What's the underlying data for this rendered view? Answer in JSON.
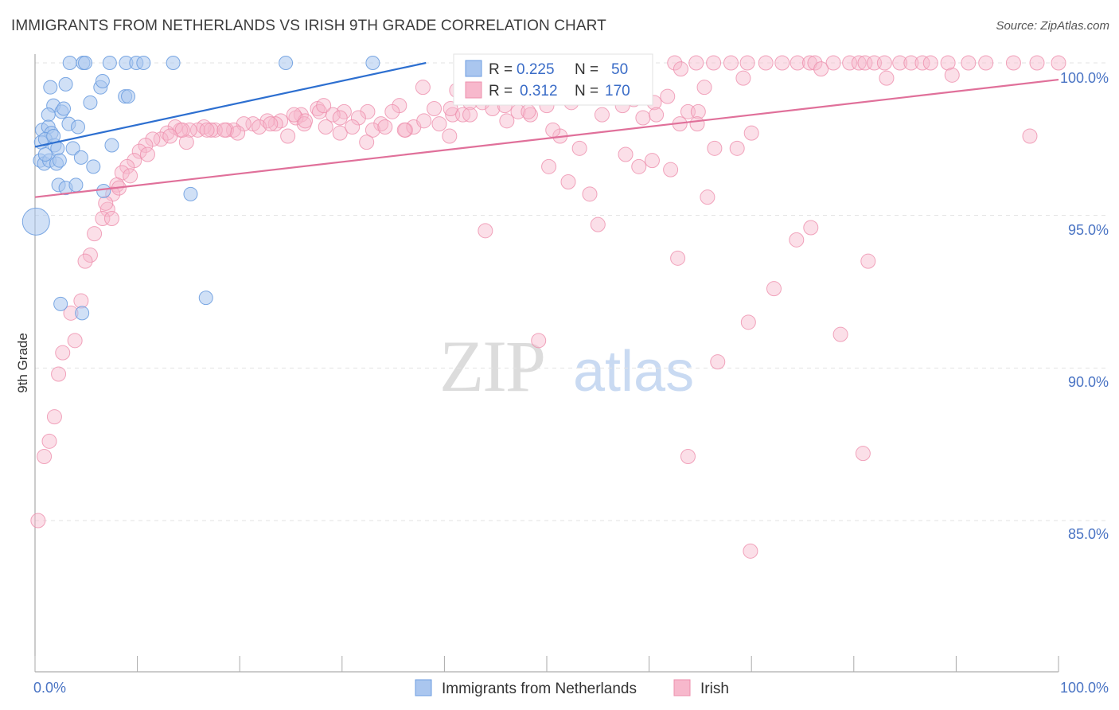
{
  "title": "IMMIGRANTS FROM NETHERLANDS VS IRISH 9TH GRADE CORRELATION CHART",
  "source": "Source: ZipAtlas.com",
  "watermark": {
    "zip": "ZIP",
    "atlas": "atlas"
  },
  "legend_box": [
    {
      "r_label": "R =",
      "r_value": "0.225",
      "n_label": "N =",
      "n_value": "50"
    },
    {
      "r_label": "R =",
      "r_value": "0.312",
      "n_label": "N =",
      "n_value": "170"
    }
  ],
  "chart_data": {
    "type": "scatter",
    "title": "IMMIGRANTS FROM NETHERLANDS VS IRISH 9TH GRADE CORRELATION CHART",
    "xlabel": "",
    "ylabel": "9th Grade",
    "xlim": [
      0,
      100
    ],
    "ylim": [
      80.5,
      100.9
    ],
    "x_tick_labels": [
      "0.0%",
      "100.0%"
    ],
    "y_ticks": [
      85,
      90,
      95,
      100
    ],
    "y_tick_labels": [
      "85.0%",
      "90.0%",
      "95.0%",
      "100.0%"
    ],
    "grid": true,
    "legend_position": "bottom",
    "colors": {
      "blue_fill": "#aac6ef",
      "blue_stroke": "#6e9ee0",
      "blue_line": "#2d6fd0",
      "pink_fill": "#f7b8cc",
      "pink_stroke": "#ee8fad",
      "pink_line": "#e0709a"
    },
    "series": [
      {
        "name": "Immigrants from Netherlands",
        "R": 0.225,
        "N": 50,
        "trend": {
          "x0": 0,
          "y0": 97.25,
          "x1": 38.2,
          "y1": 100
        },
        "points": [
          [
            3.4,
            100
          ],
          [
            4.7,
            100
          ],
          [
            4.9,
            100
          ],
          [
            7.3,
            100
          ],
          [
            8.9,
            100
          ],
          [
            9.9,
            100
          ],
          [
            10.6,
            100
          ],
          [
            13.5,
            100
          ],
          [
            24.5,
            100
          ],
          [
            33.0,
            100
          ],
          [
            1.5,
            99.2
          ],
          [
            3.0,
            99.3
          ],
          [
            6.4,
            99.2
          ],
          [
            6.6,
            99.4
          ],
          [
            8.8,
            98.9
          ],
          [
            9.1,
            98.9
          ],
          [
            1.8,
            98.6
          ],
          [
            2.6,
            98.4
          ],
          [
            2.8,
            98.5
          ],
          [
            5.4,
            98.7
          ],
          [
            1.3,
            98.3
          ],
          [
            0.7,
            97.8
          ],
          [
            1.3,
            97.9
          ],
          [
            1.6,
            97.7
          ],
          [
            3.3,
            98.0
          ],
          [
            4.2,
            97.9
          ],
          [
            0.6,
            97.4
          ],
          [
            1.0,
            97.5
          ],
          [
            1.9,
            97.3
          ],
          [
            2.2,
            97.2
          ],
          [
            3.7,
            97.2
          ],
          [
            7.5,
            97.3
          ],
          [
            0.5,
            96.8
          ],
          [
            0.9,
            96.7
          ],
          [
            1.4,
            96.8
          ],
          [
            2.1,
            96.7
          ],
          [
            2.4,
            96.8
          ],
          [
            4.5,
            96.9
          ],
          [
            5.7,
            96.6
          ],
          [
            1.0,
            97.0
          ],
          [
            2.3,
            96.0
          ],
          [
            3.0,
            95.9
          ],
          [
            4.0,
            96.0
          ],
          [
            6.7,
            95.8
          ],
          [
            15.2,
            95.7
          ],
          [
            0.1,
            94.8
          ],
          [
            2.5,
            92.1
          ],
          [
            4.6,
            91.8
          ],
          [
            16.7,
            92.3
          ],
          [
            1.8,
            97.6
          ]
        ]
      },
      {
        "name": "Irish",
        "R": 0.312,
        "N": 170,
        "trend": {
          "x0": 0,
          "y0": 95.6,
          "x1": 100,
          "y1": 99.45
        },
        "points": [
          [
            51.2,
            100
          ],
          [
            51.8,
            100
          ],
          [
            52.8,
            100
          ],
          [
            54.9,
            100
          ],
          [
            57.3,
            100
          ],
          [
            62.5,
            100
          ],
          [
            64.6,
            100
          ],
          [
            66.3,
            100
          ],
          [
            68.0,
            100
          ],
          [
            69.6,
            100
          ],
          [
            71.4,
            100
          ],
          [
            73.0,
            100
          ],
          [
            74.5,
            100
          ],
          [
            75.7,
            100
          ],
          [
            76.2,
            100
          ],
          [
            78.0,
            100
          ],
          [
            79.6,
            100
          ],
          [
            80.5,
            100
          ],
          [
            81.1,
            100
          ],
          [
            82.0,
            100
          ],
          [
            83.0,
            100
          ],
          [
            84.5,
            100
          ],
          [
            85.6,
            100
          ],
          [
            86.7,
            100
          ],
          [
            87.5,
            100
          ],
          [
            89.2,
            100
          ],
          [
            91.2,
            100
          ],
          [
            92.9,
            100
          ],
          [
            95.6,
            100
          ],
          [
            97.9,
            100
          ],
          [
            100.0,
            100
          ],
          [
            63.1,
            99.8
          ],
          [
            69.2,
            99.5
          ],
          [
            76.8,
            99.8
          ],
          [
            89.6,
            99.6
          ],
          [
            65.4,
            99.2
          ],
          [
            83.2,
            99.5
          ],
          [
            97.2,
            97.6
          ],
          [
            37.9,
            99.2
          ],
          [
            41.2,
            99.1
          ],
          [
            44.3,
            99.1
          ],
          [
            46.8,
            98.9
          ],
          [
            49.2,
            98.9
          ],
          [
            52.4,
            98.7
          ],
          [
            54.9,
            98.9
          ],
          [
            56.0,
            99.1
          ],
          [
            60.5,
            98.7
          ],
          [
            61.8,
            98.9
          ],
          [
            63.8,
            98.4
          ],
          [
            64.8,
            98.4
          ],
          [
            50.0,
            98.6
          ],
          [
            42.5,
            98.7
          ],
          [
            40.8,
            98.3
          ],
          [
            39.0,
            98.5
          ],
          [
            35.6,
            98.6
          ],
          [
            34.9,
            98.4
          ],
          [
            33.8,
            98.0
          ],
          [
            32.5,
            98.4
          ],
          [
            31.6,
            98.2
          ],
          [
            30.2,
            98.4
          ],
          [
            29.1,
            98.3
          ],
          [
            27.6,
            98.5
          ],
          [
            27.8,
            98.4
          ],
          [
            26.0,
            98.3
          ],
          [
            25.5,
            98.2
          ],
          [
            24.0,
            98.1
          ],
          [
            23.5,
            98.0
          ],
          [
            22.7,
            98.1
          ],
          [
            21.3,
            98.0
          ],
          [
            20.4,
            98.0
          ],
          [
            19.4,
            97.8
          ],
          [
            18.7,
            97.8
          ],
          [
            17.6,
            97.8
          ],
          [
            16.5,
            97.9
          ],
          [
            15.9,
            97.8
          ],
          [
            15.1,
            97.8
          ],
          [
            14.2,
            97.8
          ],
          [
            13.7,
            97.9
          ],
          [
            12.9,
            97.7
          ],
          [
            12.3,
            97.5
          ],
          [
            11.5,
            97.5
          ],
          [
            10.8,
            97.3
          ],
          [
            10.2,
            97.1
          ],
          [
            9.7,
            96.8
          ],
          [
            9.0,
            96.6
          ],
          [
            8.5,
            96.4
          ],
          [
            8.0,
            96.0
          ],
          [
            7.6,
            95.7
          ],
          [
            7.1,
            95.2
          ],
          [
            6.6,
            94.9
          ],
          [
            7.5,
            94.9
          ],
          [
            5.8,
            94.4
          ],
          [
            5.4,
            93.7
          ],
          [
            4.9,
            93.5
          ],
          [
            4.5,
            92.2
          ],
          [
            3.5,
            91.8
          ],
          [
            3.9,
            90.9
          ],
          [
            2.7,
            90.5
          ],
          [
            2.3,
            89.8
          ],
          [
            1.9,
            88.4
          ],
          [
            1.4,
            87.6
          ],
          [
            0.9,
            87.1
          ],
          [
            0.3,
            85.0
          ],
          [
            14.8,
            97.4
          ],
          [
            17.2,
            97.8
          ],
          [
            19.8,
            97.7
          ],
          [
            21.9,
            97.9
          ],
          [
            24.7,
            97.6
          ],
          [
            26.3,
            98.0
          ],
          [
            28.4,
            97.9
          ],
          [
            29.8,
            97.7
          ],
          [
            31.0,
            97.9
          ],
          [
            33.0,
            97.8
          ],
          [
            34.2,
            97.9
          ],
          [
            36.2,
            97.8
          ],
          [
            37.0,
            97.9
          ],
          [
            38.0,
            98.1
          ],
          [
            39.5,
            98.0
          ],
          [
            40.6,
            98.5
          ],
          [
            41.8,
            98.3
          ],
          [
            43.7,
            98.7
          ],
          [
            44.7,
            98.5
          ],
          [
            45.9,
            98.6
          ],
          [
            47.2,
            98.4
          ],
          [
            48.4,
            98.3
          ],
          [
            51.3,
            97.6
          ],
          [
            53.2,
            97.2
          ],
          [
            55.4,
            98.3
          ],
          [
            57.7,
            97.0
          ],
          [
            59.4,
            98.2
          ],
          [
            60.7,
            98.3
          ],
          [
            57.4,
            98.6
          ],
          [
            58.5,
            98.8
          ],
          [
            46.1,
            98.1
          ],
          [
            42.5,
            98.3
          ],
          [
            40.5,
            97.6
          ],
          [
            36.1,
            97.8
          ],
          [
            32.4,
            97.4
          ],
          [
            29.8,
            98.2
          ],
          [
            28.2,
            98.6
          ],
          [
            26.4,
            98.1
          ],
          [
            25.3,
            98.3
          ],
          [
            23.0,
            98.0
          ],
          [
            18.5,
            97.8
          ],
          [
            16.8,
            97.8
          ],
          [
            14.4,
            97.8
          ],
          [
            13.2,
            97.6
          ],
          [
            11.0,
            97.0
          ],
          [
            9.3,
            96.3
          ],
          [
            8.2,
            95.9
          ],
          [
            6.9,
            95.4
          ],
          [
            63.0,
            98.0
          ],
          [
            64.7,
            98.0
          ],
          [
            59.0,
            96.6
          ],
          [
            60.3,
            96.8
          ],
          [
            62.1,
            96.5
          ],
          [
            66.4,
            97.2
          ],
          [
            68.6,
            97.2
          ],
          [
            48.2,
            98.4
          ],
          [
            50.6,
            97.8
          ],
          [
            50.2,
            96.6
          ],
          [
            52.1,
            96.1
          ],
          [
            54.2,
            95.7
          ],
          [
            55.0,
            94.7
          ],
          [
            65.7,
            95.6
          ],
          [
            70.0,
            97.7
          ],
          [
            44.0,
            94.5
          ],
          [
            62.8,
            93.6
          ],
          [
            74.4,
            94.2
          ],
          [
            75.8,
            94.6
          ],
          [
            72.2,
            92.6
          ],
          [
            81.4,
            93.5
          ],
          [
            69.7,
            91.5
          ],
          [
            78.7,
            91.1
          ],
          [
            49.2,
            90.9
          ],
          [
            66.7,
            90.2
          ],
          [
            63.8,
            87.1
          ],
          [
            80.9,
            87.2
          ],
          [
            69.9,
            84.0
          ]
        ]
      }
    ]
  }
}
